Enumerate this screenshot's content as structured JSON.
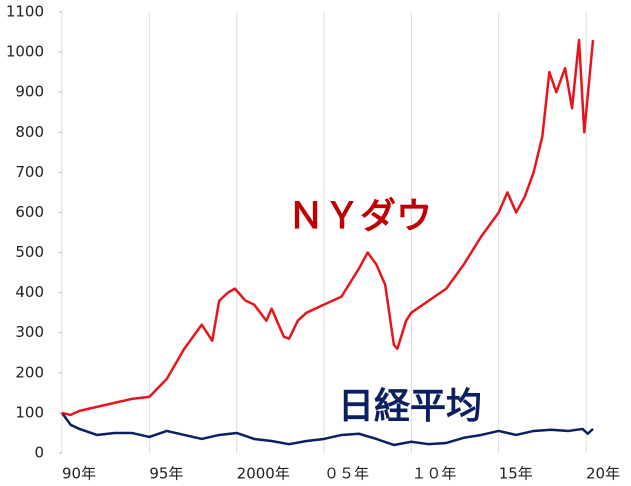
{
  "chart_data": {
    "type": "line",
    "series": [
      {
        "name": "ＮＹダウ",
        "color": "#e8141b",
        "label_color": "#c00000",
        "x": [
          1990,
          1990.5,
          1991,
          1992,
          1993,
          1994,
          1995,
          1996,
          1997,
          1997.5,
          1998,
          1998.6,
          1999,
          1999.5,
          1999.9,
          2000.5,
          2001,
          2001.7,
          2002,
          2002.7,
          2003,
          2003.5,
          2004,
          2005,
          2006,
          2007,
          2007.5,
          2008,
          2008.5,
          2009,
          2009.2,
          2009.7,
          2010,
          2011,
          2012,
          2013,
          2014,
          2015,
          2015.5,
          2016,
          2016.5,
          2017,
          2017.5,
          2017.9,
          2018.3,
          2018.8,
          2019.2,
          2019.6,
          2019.9,
          2020.4
        ],
        "values": [
          100,
          95,
          105,
          115,
          125,
          135,
          140,
          185,
          260,
          290,
          320,
          280,
          380,
          400,
          410,
          380,
          370,
          330,
          360,
          290,
          285,
          330,
          350,
          370,
          390,
          460,
          500,
          470,
          420,
          270,
          260,
          330,
          350,
          380,
          410,
          470,
          540,
          600,
          650,
          600,
          640,
          700,
          790,
          950,
          900,
          960,
          860,
          1030,
          800,
          1030
        ]
      },
      {
        "name": "日経平均",
        "color": "#0c1f5e",
        "label_color": "#0c1f5e",
        "x": [
          1990,
          1990.5,
          1991,
          1992,
          1993,
          1994,
          1995,
          1996,
          1997,
          1998,
          1999,
          2000,
          2001,
          2002,
          2003,
          2004,
          2005,
          2006,
          2007,
          2008,
          2009,
          2010,
          2011,
          2012,
          2013,
          2014,
          2015,
          2016,
          2017,
          2018,
          2019,
          2019.8,
          2020.1,
          2020.4
        ],
        "values": [
          100,
          70,
          60,
          45,
          50,
          50,
          40,
          55,
          45,
          35,
          45,
          50,
          35,
          30,
          22,
          30,
          35,
          45,
          48,
          35,
          20,
          28,
          22,
          25,
          38,
          45,
          55,
          45,
          55,
          58,
          55,
          60,
          48,
          60
        ]
      }
    ],
    "xlim": [
      1990,
      2020.8
    ],
    "xticks": [
      {
        "value": 1990,
        "label": "90年"
      },
      {
        "value": 1995,
        "label": "95年"
      },
      {
        "value": 2000,
        "label": "2000年"
      },
      {
        "value": 2005,
        "label": "０５年"
      },
      {
        "value": 2010,
        "label": "１０年"
      },
      {
        "value": 2015,
        "label": "15年"
      },
      {
        "value": 2020,
        "label": "20年"
      }
    ],
    "ylim": [
      0,
      1100
    ],
    "yticks": [
      0,
      100,
      200,
      300,
      400,
      500,
      600,
      700,
      800,
      900,
      1000,
      1100
    ],
    "grid": true
  }
}
